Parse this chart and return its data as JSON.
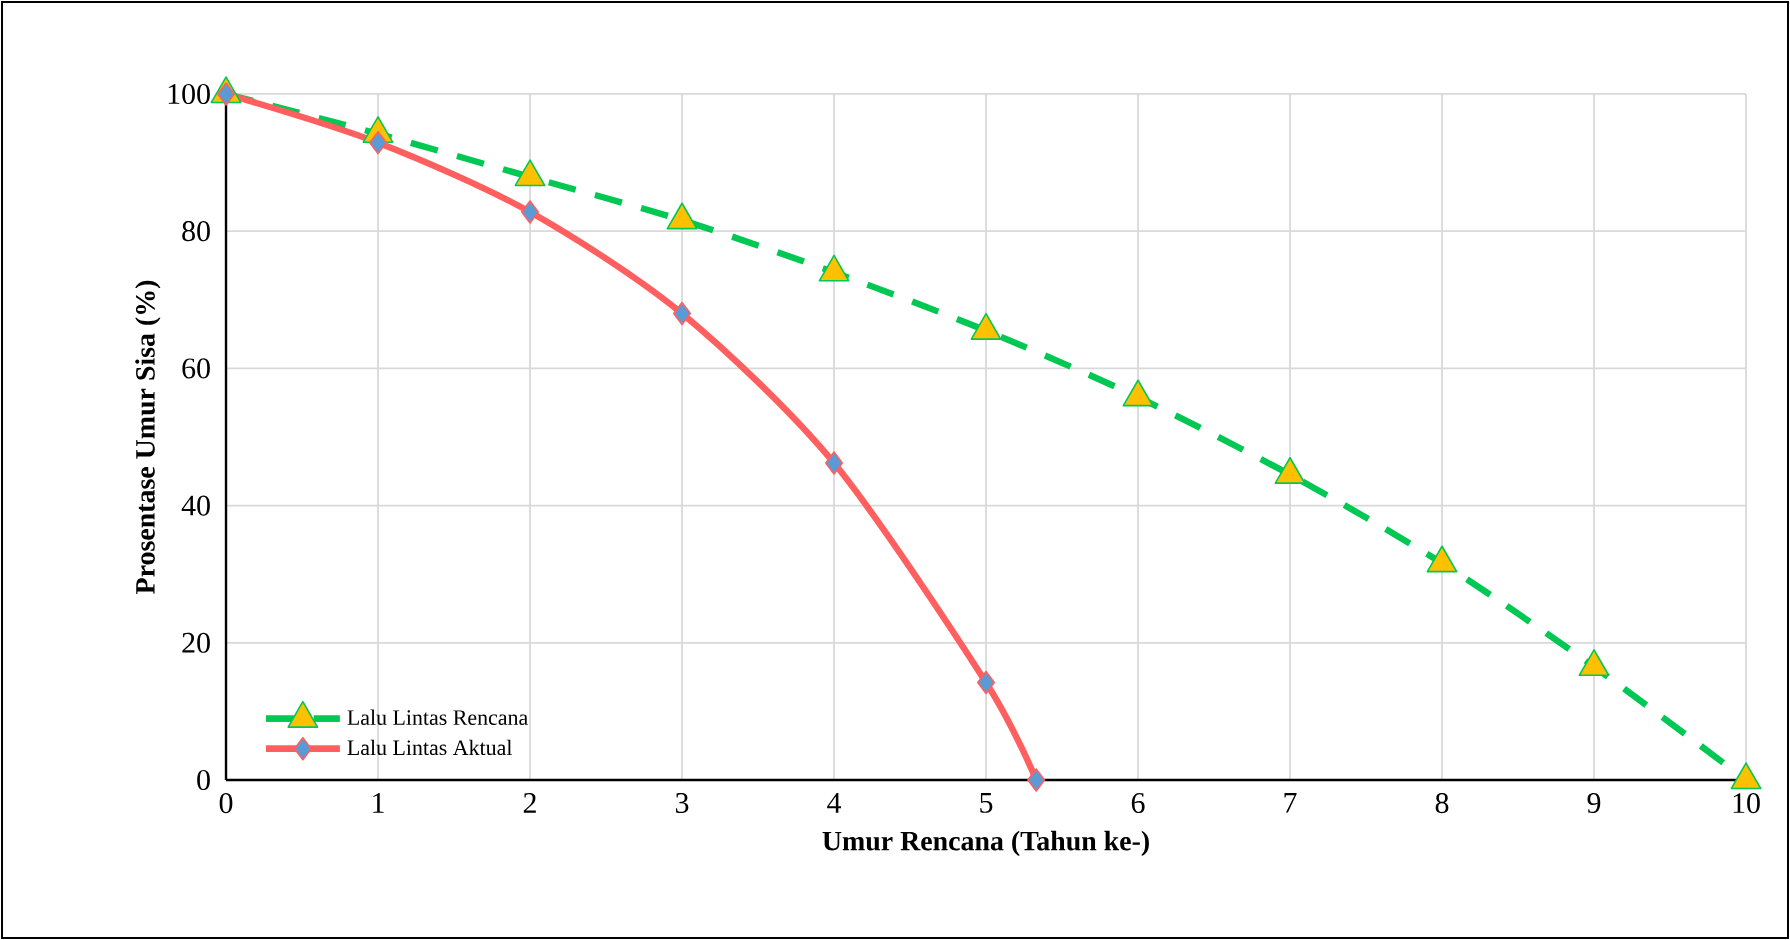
{
  "chart_data": {
    "type": "line",
    "xlabel": "Umur Rencana (Tahun ke-)",
    "ylabel": "Prosentase Umur Sisa (%)",
    "xlim": [
      0,
      10
    ],
    "ylim": [
      0,
      100
    ],
    "xticks": [
      0,
      1,
      2,
      3,
      4,
      5,
      6,
      7,
      8,
      9,
      10
    ],
    "yticks": [
      0,
      20,
      40,
      60,
      80,
      100
    ],
    "grid": true,
    "legend": "bottom left",
    "series": [
      {
        "name": "Lalu Lintas Rencana",
        "color": "#00c853",
        "marker": "triangle",
        "line_style": "dashed",
        "x": [
          0,
          1,
          2,
          3,
          4,
          5,
          6,
          7,
          8,
          9,
          10
        ],
        "values": [
          100,
          94.2,
          87.9,
          81.6,
          74,
          65.5,
          55.8,
          44.5,
          31.6,
          16.5,
          0
        ]
      },
      {
        "name": "Lalu Lintas Aktual",
        "color": "#ff5f5f",
        "marker": "diamond",
        "line_style": "solid",
        "x": [
          0,
          1,
          2,
          3,
          4,
          5,
          5.33
        ],
        "values": [
          100,
          92.9,
          82.8,
          68,
          46.2,
          14.2,
          0
        ]
      }
    ]
  }
}
